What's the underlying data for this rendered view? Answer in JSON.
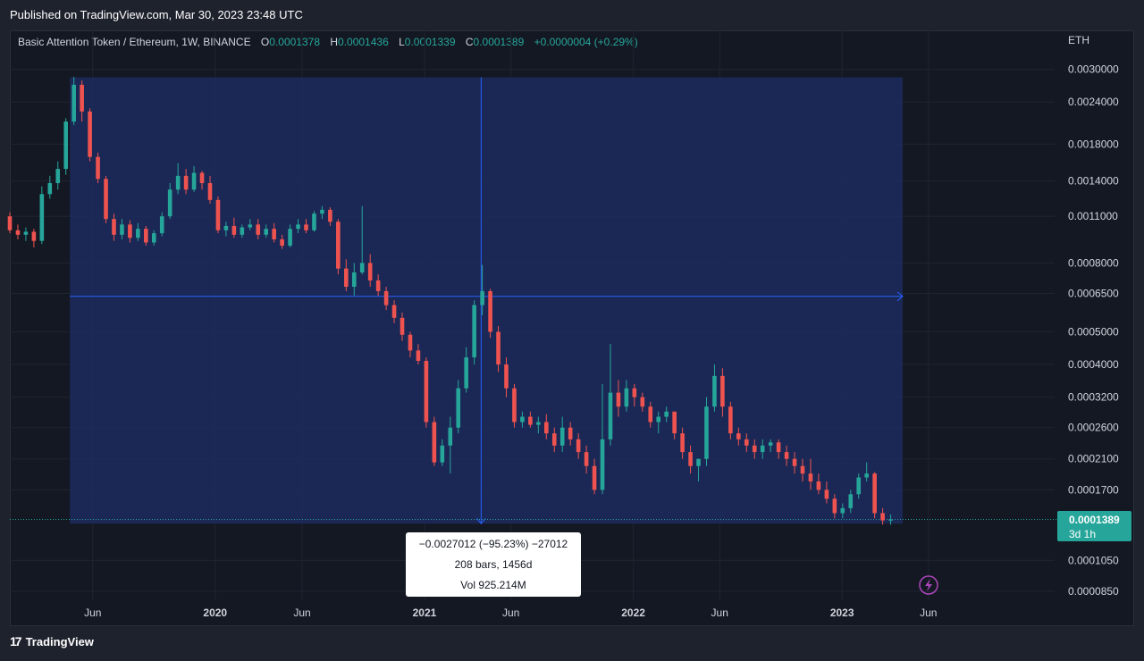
{
  "header": {
    "published": "Published on TradingView.com, Mar 30, 2023 23:48 UTC"
  },
  "legend": {
    "symbol": "Basic Attention Token / Ethereum, 1W, BINANCE",
    "o_label": "O",
    "o": "0.0001378",
    "h_label": "H",
    "h": "0.0001436",
    "l_label": "L",
    "l": "0.0001339",
    "c_label": "C",
    "c": "0.0001389",
    "change": "+0.0000004 (+0.29%)"
  },
  "currency": "ETH",
  "price_badge": {
    "value": "0.0001389",
    "countdown": "3d 1h"
  },
  "measure_tooltip": {
    "line1": "−0.0027012 (−95.23%) −27012",
    "line2": "208 bars, 1456d",
    "line3": "Vol 925.214M"
  },
  "footer": {
    "brand": "TradingView",
    "logo": "17"
  },
  "colors": {
    "up": "#26a69a",
    "down": "#ef5350",
    "measure_fill": "#1c2c5e",
    "measure_line": "#2962ff",
    "badge": "#26a69a"
  },
  "chart_data": {
    "type": "candlestick",
    "scale": "log",
    "ylim": [
      8e-05,
      0.0033
    ],
    "y_ticks": [
      "0.0030000",
      "0.0024000",
      "0.0018000",
      "0.0014000",
      "0.0011000",
      "0.0008000",
      "0.0006500",
      "0.0005000",
      "0.0004000",
      "0.0003200",
      "0.0002600",
      "0.0002100",
      "0.0001700",
      "0.0001050",
      "0.0000850"
    ],
    "x_ticks": [
      {
        "label": "Jun",
        "date": "2019-06-01",
        "bold": false
      },
      {
        "label": "2020",
        "date": "2020-01-01",
        "bold": true
      },
      {
        "label": "Jun",
        "date": "2020-06-01",
        "bold": false
      },
      {
        "label": "2021",
        "date": "2021-01-01",
        "bold": true
      },
      {
        "label": "Jun",
        "date": "2021-06-01",
        "bold": false
      },
      {
        "label": "2022",
        "date": "2022-01-01",
        "bold": true
      },
      {
        "label": "Jun",
        "date": "2022-06-01",
        "bold": false
      },
      {
        "label": "2023",
        "date": "2023-01-01",
        "bold": true
      },
      {
        "label": "Jun",
        "date": "2023-06-01",
        "bold": false
      }
    ],
    "measure": {
      "start_date": "2019-04-22",
      "end_date": "2023-04-17",
      "from_price": 0.00284,
      "to_price": 0.000135,
      "mid_price": 0.000637,
      "cross_date": "2021-04-10"
    },
    "last_price": 0.0001389,
    "series": [
      {
        "date": "2019-01-07",
        "o": 0.0011,
        "h": 0.00113,
        "l": 0.00098,
        "c": 0.001
      },
      {
        "date": "2019-01-21",
        "o": 0.001,
        "h": 0.00104,
        "l": 0.00094,
        "c": 0.00097
      },
      {
        "date": "2019-02-04",
        "o": 0.00097,
        "h": 0.00102,
        "l": 0.00093,
        "c": 0.00099
      },
      {
        "date": "2019-02-18",
        "o": 0.00099,
        "h": 0.00101,
        "l": 0.00089,
        "c": 0.00093
      },
      {
        "date": "2019-03-04",
        "o": 0.00093,
        "h": 0.00135,
        "l": 0.00091,
        "c": 0.00128
      },
      {
        "date": "2019-03-18",
        "o": 0.00128,
        "h": 0.00145,
        "l": 0.00124,
        "c": 0.00138
      },
      {
        "date": "2019-04-01",
        "o": 0.00138,
        "h": 0.0016,
        "l": 0.00132,
        "c": 0.00152
      },
      {
        "date": "2019-04-15",
        "o": 0.00152,
        "h": 0.00215,
        "l": 0.00146,
        "c": 0.0021
      },
      {
        "date": "2019-04-29",
        "o": 0.0021,
        "h": 0.00285,
        "l": 0.00205,
        "c": 0.0027
      },
      {
        "date": "2019-05-13",
        "o": 0.0027,
        "h": 0.00278,
        "l": 0.0021,
        "c": 0.00225
      },
      {
        "date": "2019-05-27",
        "o": 0.00225,
        "h": 0.0023,
        "l": 0.0016,
        "c": 0.00165
      },
      {
        "date": "2019-06-10",
        "o": 0.00165,
        "h": 0.0017,
        "l": 0.00138,
        "c": 0.00142
      },
      {
        "date": "2019-06-24",
        "o": 0.00142,
        "h": 0.00145,
        "l": 0.00105,
        "c": 0.00108
      },
      {
        "date": "2019-07-08",
        "o": 0.00108,
        "h": 0.00112,
        "l": 0.00093,
        "c": 0.00097
      },
      {
        "date": "2019-07-22",
        "o": 0.00097,
        "h": 0.00108,
        "l": 0.00094,
        "c": 0.00104
      },
      {
        "date": "2019-08-05",
        "o": 0.00104,
        "h": 0.00107,
        "l": 0.00092,
        "c": 0.00095
      },
      {
        "date": "2019-08-19",
        "o": 0.00095,
        "h": 0.00105,
        "l": 0.00093,
        "c": 0.00101
      },
      {
        "date": "2019-09-02",
        "o": 0.00101,
        "h": 0.00103,
        "l": 0.0009,
        "c": 0.00092
      },
      {
        "date": "2019-09-16",
        "o": 0.00092,
        "h": 0.001,
        "l": 0.0009,
        "c": 0.00098
      },
      {
        "date": "2019-09-30",
        "o": 0.00098,
        "h": 0.00113,
        "l": 0.00096,
        "c": 0.0011
      },
      {
        "date": "2019-10-14",
        "o": 0.0011,
        "h": 0.00138,
        "l": 0.00108,
        "c": 0.00132
      },
      {
        "date": "2019-10-28",
        "o": 0.00132,
        "h": 0.00158,
        "l": 0.00128,
        "c": 0.00145
      },
      {
        "date": "2019-11-11",
        "o": 0.00145,
        "h": 0.00152,
        "l": 0.00128,
        "c": 0.00132
      },
      {
        "date": "2019-11-25",
        "o": 0.00132,
        "h": 0.00155,
        "l": 0.0013,
        "c": 0.00148
      },
      {
        "date": "2019-12-09",
        "o": 0.00148,
        "h": 0.0015,
        "l": 0.00132,
        "c": 0.00138
      },
      {
        "date": "2019-12-23",
        "o": 0.00138,
        "h": 0.00145,
        "l": 0.0012,
        "c": 0.00123
      },
      {
        "date": "2020-01-06",
        "o": 0.00123,
        "h": 0.00126,
        "l": 0.00098,
        "c": 0.001
      },
      {
        "date": "2020-01-20",
        "o": 0.001,
        "h": 0.00106,
        "l": 0.00096,
        "c": 0.00103
      },
      {
        "date": "2020-02-03",
        "o": 0.00103,
        "h": 0.00109,
        "l": 0.00095,
        "c": 0.00097
      },
      {
        "date": "2020-02-17",
        "o": 0.00097,
        "h": 0.00104,
        "l": 0.00095,
        "c": 0.00102
      },
      {
        "date": "2020-03-02",
        "o": 0.00102,
        "h": 0.00108,
        "l": 0.001,
        "c": 0.00104
      },
      {
        "date": "2020-03-16",
        "o": 0.00104,
        "h": 0.00108,
        "l": 0.00094,
        "c": 0.00097
      },
      {
        "date": "2020-03-30",
        "o": 0.00097,
        "h": 0.00104,
        "l": 0.00095,
        "c": 0.00101
      },
      {
        "date": "2020-04-13",
        "o": 0.00101,
        "h": 0.00105,
        "l": 0.00092,
        "c": 0.00094
      },
      {
        "date": "2020-04-27",
        "o": 0.00094,
        "h": 0.00097,
        "l": 0.00088,
        "c": 0.0009
      },
      {
        "date": "2020-05-11",
        "o": 0.0009,
        "h": 0.00104,
        "l": 0.00089,
        "c": 0.00101
      },
      {
        "date": "2020-05-25",
        "o": 0.00101,
        "h": 0.00108,
        "l": 0.00098,
        "c": 0.00104
      },
      {
        "date": "2020-06-08",
        "o": 0.00104,
        "h": 0.00108,
        "l": 0.00098,
        "c": 0.001
      },
      {
        "date": "2020-06-22",
        "o": 0.001,
        "h": 0.00114,
        "l": 0.00099,
        "c": 0.00112
      },
      {
        "date": "2020-07-06",
        "o": 0.00112,
        "h": 0.00118,
        "l": 0.00108,
        "c": 0.00115
      },
      {
        "date": "2020-07-20",
        "o": 0.00115,
        "h": 0.00117,
        "l": 0.00103,
        "c": 0.00106
      },
      {
        "date": "2020-08-03",
        "o": 0.00106,
        "h": 0.00108,
        "l": 0.00074,
        "c": 0.00077
      },
      {
        "date": "2020-08-17",
        "o": 0.00077,
        "h": 0.00082,
        "l": 0.00066,
        "c": 0.00068
      },
      {
        "date": "2020-08-31",
        "o": 0.00068,
        "h": 0.0008,
        "l": 0.00064,
        "c": 0.00075
      },
      {
        "date": "2020-09-14",
        "o": 0.00075,
        "h": 0.00118,
        "l": 0.00074,
        "c": 0.0008
      },
      {
        "date": "2020-09-28",
        "o": 0.0008,
        "h": 0.00085,
        "l": 0.00068,
        "c": 0.00071
      },
      {
        "date": "2020-10-12",
        "o": 0.00071,
        "h": 0.00074,
        "l": 0.00064,
        "c": 0.00066
      },
      {
        "date": "2020-10-26",
        "o": 0.00066,
        "h": 0.00068,
        "l": 0.00058,
        "c": 0.0006
      },
      {
        "date": "2020-11-09",
        "o": 0.0006,
        "h": 0.00062,
        "l": 0.00053,
        "c": 0.00055
      },
      {
        "date": "2020-11-23",
        "o": 0.00055,
        "h": 0.00057,
        "l": 0.00047,
        "c": 0.00049
      },
      {
        "date": "2020-12-07",
        "o": 0.00049,
        "h": 0.0005,
        "l": 0.00042,
        "c": 0.00044
      },
      {
        "date": "2020-12-21",
        "o": 0.00044,
        "h": 0.00046,
        "l": 0.0004,
        "c": 0.00041
      },
      {
        "date": "2021-01-04",
        "o": 0.00041,
        "h": 0.00042,
        "l": 0.00026,
        "c": 0.00027
      },
      {
        "date": "2021-01-18",
        "o": 0.00027,
        "h": 0.00028,
        "l": 0.0002,
        "c": 0.000205
      },
      {
        "date": "2021-02-01",
        "o": 0.000205,
        "h": 0.00024,
        "l": 0.0002,
        "c": 0.00023
      },
      {
        "date": "2021-02-15",
        "o": 0.00023,
        "h": 0.00028,
        "l": 0.00019,
        "c": 0.00026
      },
      {
        "date": "2021-03-01",
        "o": 0.00026,
        "h": 0.00036,
        "l": 0.00025,
        "c": 0.00034
      },
      {
        "date": "2021-03-15",
        "o": 0.00034,
        "h": 0.00045,
        "l": 0.00033,
        "c": 0.00042
      },
      {
        "date": "2021-03-29",
        "o": 0.00042,
        "h": 0.00062,
        "l": 0.0004,
        "c": 0.0006
      },
      {
        "date": "2021-04-12",
        "o": 0.0006,
        "h": 0.00079,
        "l": 0.00056,
        "c": 0.00066
      },
      {
        "date": "2021-04-26",
        "o": 0.00066,
        "h": 0.00067,
        "l": 0.00048,
        "c": 0.0005
      },
      {
        "date": "2021-05-10",
        "o": 0.0005,
        "h": 0.00052,
        "l": 0.00038,
        "c": 0.0004
      },
      {
        "date": "2021-05-24",
        "o": 0.0004,
        "h": 0.00042,
        "l": 0.00032,
        "c": 0.00034
      },
      {
        "date": "2021-06-07",
        "o": 0.00034,
        "h": 0.00035,
        "l": 0.00026,
        "c": 0.00027
      },
      {
        "date": "2021-06-21",
        "o": 0.00027,
        "h": 0.00029,
        "l": 0.00026,
        "c": 0.00028
      },
      {
        "date": "2021-07-05",
        "o": 0.00028,
        "h": 0.00029,
        "l": 0.00026,
        "c": 0.000265
      },
      {
        "date": "2021-07-19",
        "o": 0.000265,
        "h": 0.00028,
        "l": 0.00025,
        "c": 0.00027
      },
      {
        "date": "2021-08-02",
        "o": 0.00027,
        "h": 0.000285,
        "l": 0.00024,
        "c": 0.00025
      },
      {
        "date": "2021-08-16",
        "o": 0.00025,
        "h": 0.00026,
        "l": 0.00022,
        "c": 0.00023
      },
      {
        "date": "2021-08-30",
        "o": 0.00023,
        "h": 0.00028,
        "l": 0.00022,
        "c": 0.00026
      },
      {
        "date": "2021-09-13",
        "o": 0.00026,
        "h": 0.00027,
        "l": 0.00023,
        "c": 0.00024
      },
      {
        "date": "2021-09-27",
        "o": 0.00024,
        "h": 0.00025,
        "l": 0.00021,
        "c": 0.00022
      },
      {
        "date": "2021-10-11",
        "o": 0.00022,
        "h": 0.00023,
        "l": 0.00019,
        "c": 0.0002
      },
      {
        "date": "2021-10-25",
        "o": 0.0002,
        "h": 0.00021,
        "l": 0.000165,
        "c": 0.00017
      },
      {
        "date": "2021-11-08",
        "o": 0.00017,
        "h": 0.00035,
        "l": 0.000165,
        "c": 0.00024
      },
      {
        "date": "2021-11-22",
        "o": 0.00024,
        "h": 0.00046,
        "l": 0.00023,
        "c": 0.00033
      },
      {
        "date": "2021-12-06",
        "o": 0.00033,
        "h": 0.00036,
        "l": 0.00028,
        "c": 0.0003
      },
      {
        "date": "2021-12-20",
        "o": 0.0003,
        "h": 0.00036,
        "l": 0.00029,
        "c": 0.00034
      },
      {
        "date": "2022-01-03",
        "o": 0.00034,
        "h": 0.00035,
        "l": 0.0003,
        "c": 0.00032
      },
      {
        "date": "2022-01-17",
        "o": 0.00032,
        "h": 0.00033,
        "l": 0.00029,
        "c": 0.0003
      },
      {
        "date": "2022-01-31",
        "o": 0.0003,
        "h": 0.00031,
        "l": 0.00026,
        "c": 0.00027
      },
      {
        "date": "2022-02-14",
        "o": 0.00027,
        "h": 0.00029,
        "l": 0.00025,
        "c": 0.00028
      },
      {
        "date": "2022-02-28",
        "o": 0.00028,
        "h": 0.0003,
        "l": 0.00027,
        "c": 0.00029
      },
      {
        "date": "2022-03-14",
        "o": 0.00029,
        "h": 0.00029,
        "l": 0.00024,
        "c": 0.00025
      },
      {
        "date": "2022-03-28",
        "o": 0.00025,
        "h": 0.00026,
        "l": 0.00021,
        "c": 0.00022
      },
      {
        "date": "2022-04-11",
        "o": 0.00022,
        "h": 0.00023,
        "l": 0.00019,
        "c": 0.0002
      },
      {
        "date": "2022-04-25",
        "o": 0.0002,
        "h": 0.00021,
        "l": 0.00018,
        "c": 0.00021
      },
      {
        "date": "2022-05-09",
        "o": 0.00021,
        "h": 0.00032,
        "l": 0.0002,
        "c": 0.0003
      },
      {
        "date": "2022-05-23",
        "o": 0.0003,
        "h": 0.0004,
        "l": 0.00029,
        "c": 0.00037
      },
      {
        "date": "2022-06-06",
        "o": 0.00037,
        "h": 0.00039,
        "l": 0.00028,
        "c": 0.0003
      },
      {
        "date": "2022-06-20",
        "o": 0.0003,
        "h": 0.00031,
        "l": 0.00024,
        "c": 0.00025
      },
      {
        "date": "2022-07-04",
        "o": 0.00025,
        "h": 0.00026,
        "l": 0.00023,
        "c": 0.00024
      },
      {
        "date": "2022-07-18",
        "o": 0.00024,
        "h": 0.00025,
        "l": 0.00022,
        "c": 0.00023
      },
      {
        "date": "2022-08-01",
        "o": 0.00023,
        "h": 0.00024,
        "l": 0.00021,
        "c": 0.00022
      },
      {
        "date": "2022-08-15",
        "o": 0.00022,
        "h": 0.00024,
        "l": 0.00021,
        "c": 0.00023
      },
      {
        "date": "2022-08-29",
        "o": 0.00023,
        "h": 0.00024,
        "l": 0.00022,
        "c": 0.000235
      },
      {
        "date": "2022-09-12",
        "o": 0.000235,
        "h": 0.00024,
        "l": 0.00021,
        "c": 0.00022
      },
      {
        "date": "2022-09-26",
        "o": 0.00022,
        "h": 0.00023,
        "l": 0.0002,
        "c": 0.00021
      },
      {
        "date": "2022-10-10",
        "o": 0.00021,
        "h": 0.00022,
        "l": 0.00019,
        "c": 0.0002
      },
      {
        "date": "2022-10-24",
        "o": 0.0002,
        "h": 0.00021,
        "l": 0.00018,
        "c": 0.00019
      },
      {
        "date": "2022-11-07",
        "o": 0.00019,
        "h": 0.00021,
        "l": 0.00017,
        "c": 0.00018
      },
      {
        "date": "2022-11-21",
        "o": 0.00018,
        "h": 0.00019,
        "l": 0.000165,
        "c": 0.00017
      },
      {
        "date": "2022-12-05",
        "o": 0.00017,
        "h": 0.00018,
        "l": 0.000155,
        "c": 0.00016
      },
      {
        "date": "2022-12-19",
        "o": 0.00016,
        "h": 0.000165,
        "l": 0.00014,
        "c": 0.000145
      },
      {
        "date": "2023-01-02",
        "o": 0.000145,
        "h": 0.000155,
        "l": 0.00014,
        "c": 0.00015
      },
      {
        "date": "2023-01-16",
        "o": 0.00015,
        "h": 0.00017,
        "l": 0.000145,
        "c": 0.000165
      },
      {
        "date": "2023-01-30",
        "o": 0.000165,
        "h": 0.00019,
        "l": 0.00016,
        "c": 0.000185
      },
      {
        "date": "2023-02-13",
        "o": 0.000185,
        "h": 0.000205,
        "l": 0.00018,
        "c": 0.00019
      },
      {
        "date": "2023-02-27",
        "o": 0.00019,
        "h": 0.000192,
        "l": 0.00014,
        "c": 0.000145
      },
      {
        "date": "2023-03-13",
        "o": 0.000145,
        "h": 0.00015,
        "l": 0.000134,
        "c": 0.000138
      },
      {
        "date": "2023-03-27",
        "o": 0.0001378,
        "h": 0.0001436,
        "l": 0.0001339,
        "c": 0.0001389
      }
    ]
  }
}
